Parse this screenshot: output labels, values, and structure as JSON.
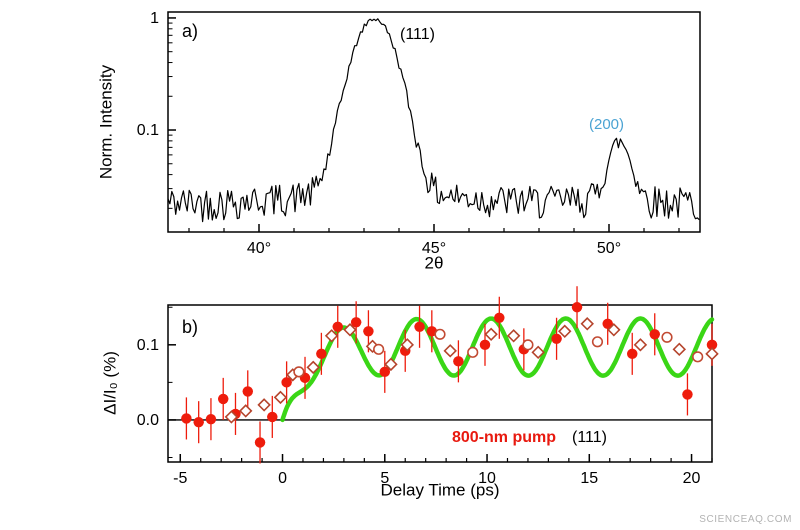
{
  "figure": {
    "watermark": "SCIENCEAQ.COM",
    "background": "#ffffff"
  },
  "panel_a": {
    "tag": "a)",
    "ylabel": "Norm. Intensity",
    "xlabel": "2θ"
  },
  "panel_b": {
    "tag": "b)",
    "ylabel": "ΔI/I₀ (%)",
    "xlabel": "Delay Time (ps)",
    "pump_label": "800-nm pump",
    "pump_color": "#e8190f",
    "reflection_label": "(111)"
  },
  "chart_data": [
    {
      "type": "line",
      "panel": "a",
      "description": "X-ray diffraction pattern, log intensity vs 2-theta, black noisy trace with (111) and (200) Bragg peaks",
      "xlabel": "2θ",
      "ylabel": "Norm. Intensity",
      "x_range": [
        37.4,
        52.6
      ],
      "y_scale": "log",
      "y_range": [
        0.0123,
        1.13
      ],
      "x_ticks": [
        {
          "value": 40,
          "label": "40°"
        },
        {
          "value": 45,
          "label": "45°"
        },
        {
          "value": 50,
          "label": "50°"
        }
      ],
      "y_ticks": [
        {
          "value": 1,
          "label": "1"
        },
        {
          "value": 0.1,
          "label": "0.1"
        }
      ],
      "trace_color": "#000000",
      "baseline": 0.022,
      "noise": {
        "seed": 42,
        "rel_amp": 0.35
      },
      "peaks": [
        {
          "center": 43.3,
          "amplitude": 0.95,
          "sigma": 0.5,
          "wing_amp": 0.012,
          "wing_gamma": 1.5,
          "label": "(111)",
          "label_color": "#000000"
        },
        {
          "center": 50.3,
          "amplitude": 0.052,
          "sigma": 0.28,
          "wing_amp": 0.004,
          "wing_gamma": 0.8,
          "label": "(200)",
          "label_color": "#4ba3d3"
        }
      ]
    },
    {
      "type": "scatter",
      "panel": "b",
      "description": "Transient diffraction intensity change of the (111) peak vs pump-probe delay with oscillatory fit",
      "xlabel": "Delay Time (ps)",
      "ylabel": "ΔI/I₀ (%)",
      "x_range": [
        -5.6,
        21.0
      ],
      "y_range": [
        -0.056,
        0.153
      ],
      "x_ticks": [
        {
          "value": -5,
          "label": "-5"
        },
        {
          "value": 0,
          "label": "0"
        },
        {
          "value": 5,
          "label": "5"
        },
        {
          "value": 10,
          "label": "10"
        },
        {
          "value": 15,
          "label": "15"
        },
        {
          "value": 20,
          "label": "20"
        }
      ],
      "y_ticks": [
        {
          "value": 0.0,
          "label": "0.0"
        },
        {
          "value": 0.1,
          "label": "0.1"
        }
      ],
      "zero_line": 0.0,
      "series": [
        {
          "name": "800-nm pump (111) - filled circles",
          "marker": "circle-filled",
          "color": "#ee1c0c",
          "yerr": 0.028,
          "xerr": 0.25,
          "points": [
            [
              -4.7,
              0.002
            ],
            [
              -4.1,
              -0.003
            ],
            [
              -3.5,
              0.001
            ],
            [
              -2.9,
              0.028
            ],
            [
              -2.3,
              0.008
            ],
            [
              -1.7,
              0.038
            ],
            [
              -1.1,
              -0.03
            ],
            [
              -0.5,
              0.004
            ],
            [
              0.2,
              0.05
            ],
            [
              1.1,
              0.056
            ],
            [
              1.9,
              0.088
            ],
            [
              2.7,
              0.124
            ],
            [
              3.6,
              0.13
            ],
            [
              4.2,
              0.118
            ],
            [
              5.0,
              0.064
            ],
            [
              6.0,
              0.092
            ],
            [
              6.7,
              0.124
            ],
            [
              7.3,
              0.118
            ],
            [
              8.6,
              0.078
            ],
            [
              9.9,
              0.1
            ],
            [
              10.6,
              0.136
            ],
            [
              11.8,
              0.094
            ],
            [
              13.4,
              0.108
            ],
            [
              14.4,
              0.15
            ],
            [
              15.9,
              0.128
            ],
            [
              17.1,
              0.088
            ],
            [
              18.2,
              0.114
            ],
            [
              19.8,
              0.034
            ],
            [
              21.0,
              0.1
            ]
          ]
        },
        {
          "name": "open diamonds",
          "marker": "diamond-open",
          "color": "#b5442c",
          "points": [
            [
              -2.5,
              0.004
            ],
            [
              -1.8,
              0.012
            ],
            [
              -0.9,
              0.02
            ],
            [
              -0.1,
              0.03
            ],
            [
              0.5,
              0.06
            ],
            [
              1.5,
              0.07
            ],
            [
              2.4,
              0.112
            ],
            [
              3.3,
              0.12
            ],
            [
              4.4,
              0.098
            ],
            [
              5.3,
              0.074
            ],
            [
              6.1,
              0.1
            ],
            [
              8.2,
              0.092
            ],
            [
              10.2,
              0.114
            ],
            [
              11.3,
              0.112
            ],
            [
              12.5,
              0.09
            ],
            [
              13.8,
              0.118
            ],
            [
              14.9,
              0.128
            ],
            [
              16.2,
              0.12
            ],
            [
              17.5,
              0.1
            ],
            [
              19.4,
              0.094
            ],
            [
              21.0,
              0.088
            ]
          ]
        },
        {
          "name": "open circles",
          "marker": "circle-open",
          "color": "#c24a33",
          "points": [
            [
              0.8,
              0.064
            ],
            [
              4.7,
              0.094
            ],
            [
              7.7,
              0.114
            ],
            [
              9.3,
              0.09
            ],
            [
              12.0,
              0.1
            ],
            [
              15.4,
              0.104
            ],
            [
              18.8,
              0.11
            ],
            [
              20.3,
              0.084
            ]
          ]
        }
      ],
      "fit": {
        "name": "oscillatory fit",
        "color": "#2fd409",
        "width": 4.5,
        "mean": 0.097,
        "rise_tau": 1.1,
        "osc_amp": 0.038,
        "osc_tau": 1.5,
        "period_ps": 3.65,
        "peak_time": 2.9,
        "t_start": 0.0,
        "t_end": 21.0
      }
    }
  ]
}
